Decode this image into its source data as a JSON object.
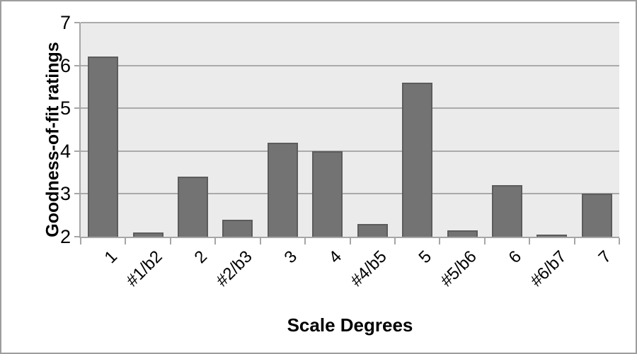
{
  "chart_data": {
    "type": "bar",
    "title": "",
    "categories": [
      "1",
      "#1/b2",
      "2",
      "#2/b3",
      "3",
      "4",
      "#4/b5",
      "5",
      "#5/b6",
      "6",
      "#6/b7",
      "7"
    ],
    "values": [
      6.2,
      2.1,
      3.4,
      2.4,
      4.2,
      4.0,
      2.3,
      5.6,
      2.15,
      3.2,
      2.05,
      3.0
    ],
    "xlabel": "Scale Degrees",
    "ylabel": "Goodness-of-fit ratings",
    "ylim": [
      2,
      7
    ],
    "yticks": [
      2,
      3,
      4,
      5,
      6,
      7
    ],
    "grid": true,
    "legend": "none",
    "colors": {
      "bar_fill": "#737373",
      "bar_border": "#5c5c5c",
      "plot_background": "#ebebeb",
      "gridline": "#aaaaaa",
      "axis_line": "#a6a6a6",
      "frame_border": "#9d9d9d",
      "text": "#000000"
    }
  }
}
